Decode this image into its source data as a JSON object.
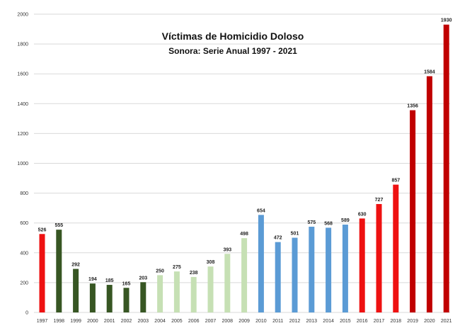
{
  "chart_data": {
    "type": "bar",
    "title": "Víctimas de Homicidio Doloso",
    "subtitle": "Sonora: Serie Anual 1997 - 2021",
    "xlabel": "",
    "ylabel": "",
    "ylim": [
      0,
      2000
    ],
    "yticks": [
      0,
      200,
      400,
      600,
      800,
      1000,
      1200,
      1400,
      1600,
      1800,
      2000
    ],
    "grid": true,
    "categories": [
      "1997",
      "1998",
      "1999",
      "2000",
      "2001",
      "2002",
      "2003",
      "2004",
      "2005",
      "2006",
      "2007",
      "2008",
      "2009",
      "2010",
      "2011",
      "2012",
      "2013",
      "2014",
      "2015",
      "2016",
      "2017",
      "2018",
      "2019",
      "2020",
      "2021"
    ],
    "values": [
      526,
      555,
      292,
      194,
      185,
      165,
      203,
      250,
      275,
      238,
      308,
      393,
      498,
      654,
      472,
      501,
      575,
      568,
      589,
      630,
      727,
      857,
      1356,
      1584,
      1930
    ],
    "bar_colors": [
      "#ee1111",
      "#375623",
      "#375623",
      "#375623",
      "#375623",
      "#375623",
      "#375623",
      "#c6e0b4",
      "#c6e0b4",
      "#c6e0b4",
      "#c6e0b4",
      "#c6e0b4",
      "#c6e0b4",
      "#5b9bd5",
      "#5b9bd5",
      "#5b9bd5",
      "#5b9bd5",
      "#5b9bd5",
      "#5b9bd5",
      "#ee1111",
      "#ee1111",
      "#ee1111",
      "#c00000",
      "#c00000",
      "#c00000"
    ]
  }
}
